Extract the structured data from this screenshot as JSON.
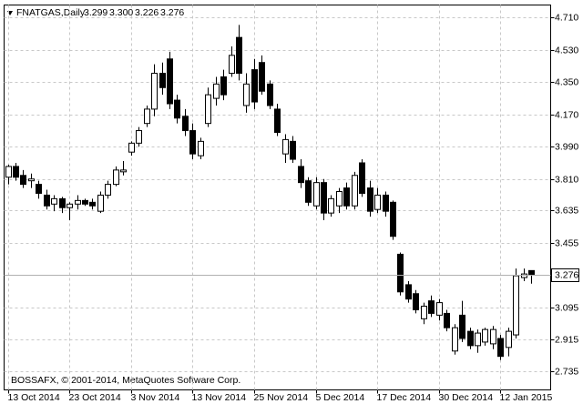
{
  "chart_data": {
    "type": "candlestick",
    "title": "FNATGAS,Daily",
    "ohlc_labels": [
      "3.299",
      "3.300",
      "3.226",
      "3.276"
    ],
    "watermark": "BOSSAFX, © 2001-2014, MetaQuotes Software Corp.",
    "categories": [
      "13 Oct 2014",
      null,
      null,
      null,
      null,
      null,
      null,
      null,
      "23 Oct 2014",
      null,
      null,
      null,
      null,
      null,
      null,
      null,
      "3 Nov 2014",
      null,
      null,
      null,
      null,
      null,
      null,
      null,
      "13 Nov 2014",
      null,
      null,
      null,
      null,
      null,
      null,
      null,
      "25 Nov 2014",
      null,
      null,
      null,
      null,
      null,
      null,
      null,
      "5 Dec 2014",
      null,
      null,
      null,
      null,
      null,
      null,
      null,
      "17 Dec 2014",
      null,
      null,
      null,
      null,
      null,
      null,
      null,
      "30 Dec 2014",
      null,
      null,
      null,
      null,
      null,
      null,
      null,
      "12 Jan 2015",
      null,
      null,
      null,
      null
    ],
    "open": [
      3.82,
      3.88,
      3.83,
      3.8,
      3.78,
      3.72,
      3.67,
      3.7,
      3.65,
      3.67,
      3.69,
      3.68,
      3.63,
      3.72,
      3.78,
      3.85,
      3.96,
      4.01,
      4.12,
      4.2,
      4.4,
      4.48,
      4.25,
      4.16,
      4.08,
      3.94,
      4.12,
      4.26,
      4.38,
      4.4,
      4.6,
      4.22,
      4.42,
      4.46,
      4.34,
      4.2,
      3.95,
      4.02,
      3.88,
      3.8,
      3.66,
      3.79,
      3.62,
      3.66,
      3.76,
      3.66,
      3.9,
      3.76,
      3.64,
      3.72,
      3.68,
      3.39,
      3.22,
      3.17,
      3.03,
      3.13,
      3.05,
      3.06,
      2.85,
      3.05,
      2.96,
      2.88,
      2.9,
      2.89,
      2.92,
      2.87,
      2.94,
      3.26,
      3.299
    ],
    "high": [
      3.89,
      3.9,
      3.86,
      3.84,
      3.8,
      3.75,
      3.72,
      3.71,
      3.68,
      3.72,
      3.7,
      3.7,
      3.74,
      3.8,
      3.88,
      3.91,
      4.02,
      4.1,
      4.22,
      4.45,
      4.46,
      4.52,
      4.28,
      4.2,
      4.12,
      4.04,
      4.32,
      4.38,
      4.42,
      4.55,
      4.67,
      4.4,
      4.48,
      4.5,
      4.36,
      4.23,
      4.06,
      4.05,
      3.92,
      3.82,
      3.82,
      3.81,
      3.72,
      3.76,
      3.79,
      3.85,
      3.92,
      3.8,
      3.76,
      3.74,
      3.69,
      3.4,
      3.24,
      3.19,
      3.12,
      3.16,
      3.14,
      3.08,
      3.0,
      3.13,
      2.98,
      2.97,
      2.98,
      2.99,
      2.94,
      2.98,
      3.31,
      3.31,
      3.3
    ],
    "low": [
      3.78,
      3.8,
      3.76,
      3.76,
      3.7,
      3.64,
      3.63,
      3.62,
      3.58,
      3.64,
      3.66,
      3.64,
      3.62,
      3.7,
      3.77,
      3.83,
      3.94,
      3.99,
      4.1,
      4.16,
      4.28,
      4.2,
      4.12,
      4.05,
      3.92,
      3.92,
      4.1,
      4.22,
      4.25,
      4.38,
      4.36,
      4.18,
      4.2,
      4.28,
      4.2,
      4.05,
      3.9,
      3.9,
      3.76,
      3.66,
      3.64,
      3.58,
      3.6,
      3.62,
      3.64,
      3.64,
      3.71,
      3.6,
      3.62,
      3.6,
      3.47,
      3.16,
      3.12,
      3.06,
      3.0,
      3.04,
      3.02,
      2.96,
      2.83,
      2.9,
      2.86,
      2.84,
      2.88,
      2.86,
      2.8,
      2.82,
      2.92,
      3.24,
      3.226
    ],
    "close": [
      3.88,
      3.82,
      3.78,
      3.81,
      3.73,
      3.66,
      3.7,
      3.65,
      3.67,
      3.69,
      3.67,
      3.66,
      3.72,
      3.78,
      3.86,
      3.86,
      4.01,
      4.08,
      4.2,
      4.4,
      4.32,
      4.23,
      4.15,
      4.08,
      3.95,
      4.02,
      4.28,
      4.34,
      4.28,
      4.5,
      4.4,
      4.34,
      4.24,
      4.3,
      4.22,
      4.07,
      4.03,
      3.92,
      3.79,
      3.68,
      3.79,
      3.62,
      3.7,
      3.74,
      3.66,
      3.83,
      3.73,
      3.63,
      3.72,
      3.63,
      3.49,
      3.18,
      3.14,
      3.08,
      3.1,
      3.06,
      3.12,
      2.98,
      2.98,
      2.92,
      2.88,
      2.95,
      2.97,
      2.97,
      2.82,
      2.96,
      3.27,
      3.28,
      3.276
    ],
    "up_color": "#ffffff",
    "down_color": "#000000",
    "outline_color": "#000000",
    "ylim": [
      2.633,
      4.781
    ],
    "yticks": [
      {
        "value": 4.71,
        "label": "4.710"
      },
      {
        "value": 4.53,
        "label": "4.530"
      },
      {
        "value": 4.35,
        "label": "4.350"
      },
      {
        "value": 4.17,
        "label": "4.170"
      },
      {
        "value": 3.99,
        "label": "3.990"
      },
      {
        "value": 3.81,
        "label": "3.810"
      },
      3.635,
      3.455,
      3.095,
      2.915,
      2.735
    ],
    "grid": true
  }
}
